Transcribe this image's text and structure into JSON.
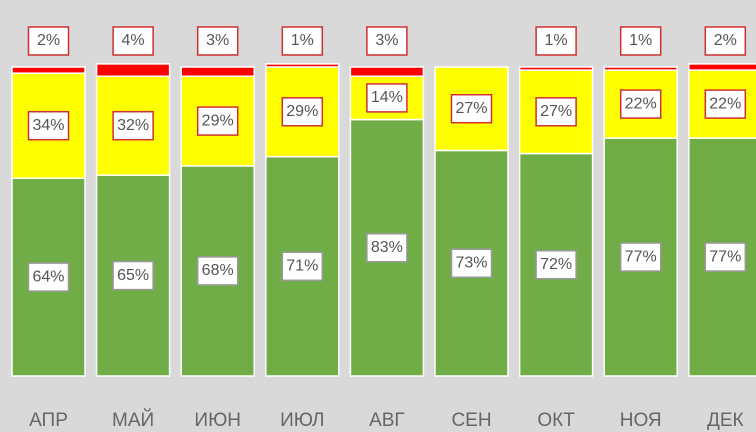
{
  "chart_data": {
    "type": "stacked_bar",
    "categories": [
      "АПР",
      "МАЙ",
      "ИЮН",
      "ИЮЛ",
      "АВГ",
      "СЕН",
      "ОКТ",
      "НОЯ",
      "ДЕК"
    ],
    "series": [
      {
        "color": "#70ad47",
        "values": [
          64,
          65,
          68,
          71,
          83,
          73,
          72,
          77,
          77
        ],
        "value_labels": [
          "64%",
          "65%",
          "68%",
          "71%",
          "83%",
          "73%",
          "72%",
          "77%",
          "77%"
        ]
      },
      {
        "color": "#ffff00",
        "values": [
          34,
          32,
          29,
          29,
          14,
          27,
          27,
          22,
          22
        ],
        "value_labels": [
          "34%",
          "32%",
          "29%",
          "29%",
          "14%",
          "27%",
          "27%",
          "22%",
          "22%"
        ]
      },
      {
        "color": "#ff0000",
        "values": [
          2,
          4,
          3,
          1,
          3,
          0,
          1,
          1,
          2
        ],
        "value_labels": [
          "2%",
          "4%",
          "3%",
          "1%",
          "3%",
          null,
          "1%",
          "1%",
          "2%"
        ]
      }
    ]
  }
}
